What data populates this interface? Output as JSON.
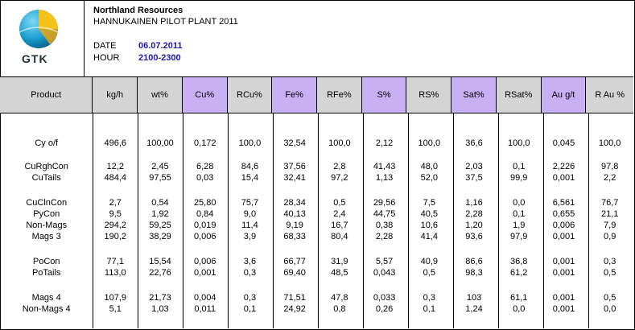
{
  "header": {
    "logo_text": "GTK",
    "company": "Northland Resources",
    "plant": "HANNUKAINEN PILOT PLANT 2011",
    "date_label": "DATE",
    "date_value": "06.07.2011",
    "hour_label": "HOUR",
    "hour_value": "2100-2300"
  },
  "colors": {
    "highlight": "#c8b0f4",
    "header_bg": "#d4d4d4",
    "date_text": "#1a1ab8"
  },
  "table": {
    "columns": [
      "Product",
      "kg/h",
      "wt%",
      "Cu%",
      "RCu%",
      "Fe%",
      "RFe%",
      "S%",
      "RS%",
      "Sat%",
      "RSat%",
      "Au g/t",
      "R Au %"
    ],
    "rows": [
      [
        "Cy o/f",
        "496,6",
        "100,00",
        "0,172",
        "100,0",
        "32,54",
        "100,0",
        "2,12",
        "100,0",
        "36,6",
        "100,0",
        "0,045",
        "100,0"
      ],
      [
        "CuRghCon",
        "12,2",
        "2,45",
        "6,28",
        "84,6",
        "37,56",
        "2,8",
        "41,43",
        "48,0",
        "2,03",
        "0,1",
        "2,226",
        "97,8"
      ],
      [
        "CuTails",
        "484,4",
        "97,55",
        "0,03",
        "15,4",
        "32,41",
        "97,2",
        "1,13",
        "52,0",
        "37,5",
        "99,9",
        "0,001",
        "2,2"
      ],
      [
        "CuClnCon",
        "2,7",
        "0,54",
        "25,80",
        "75,7",
        "28,34",
        "0,5",
        "29,56",
        "7,5",
        "1,16",
        "0,0",
        "6,561",
        "76,7"
      ],
      [
        "PyCon",
        "9,5",
        "1,92",
        "0,84",
        "9,0",
        "40,13",
        "2,4",
        "44,75",
        "40,5",
        "2,28",
        "0,1",
        "0,655",
        "21,1"
      ],
      [
        "Non-Mags",
        "294,2",
        "59,25",
        "0,019",
        "11,4",
        "9,19",
        "16,7",
        "0,38",
        "10,6",
        "1,20",
        "1,9",
        "0,006",
        "7,9"
      ],
      [
        "Mags 3",
        "190,2",
        "38,29",
        "0,006",
        "3,9",
        "68,33",
        "80,4",
        "2,28",
        "41,4",
        "93,6",
        "97,9",
        "0,001",
        "0,9"
      ],
      [
        "PoCon",
        "77,1",
        "15,54",
        "0,006",
        "3,6",
        "66,77",
        "31,9",
        "5,57",
        "40,9",
        "86,6",
        "36,8",
        "0,001",
        "0,3"
      ],
      [
        "PoTails",
        "113,0",
        "22,76",
        "0,001",
        "0,3",
        "69,40",
        "48,5",
        "0,043",
        "0,5",
        "98,3",
        "61,2",
        "0,001",
        "0,5"
      ],
      [
        "Mags 4",
        "107,9",
        "21,73",
        "0,004",
        "0,3",
        "71,51",
        "47,8",
        "0,033",
        "0,3",
        "103",
        "61,1",
        "0,001",
        "0,5"
      ],
      [
        "Non-Mags 4",
        "5,1",
        "1,03",
        "0,011",
        "0,1",
        "24,92",
        "0,8",
        "0,26",
        "0,1",
        "1,24",
        "0,0",
        "0,001",
        "0,0"
      ]
    ]
  }
}
